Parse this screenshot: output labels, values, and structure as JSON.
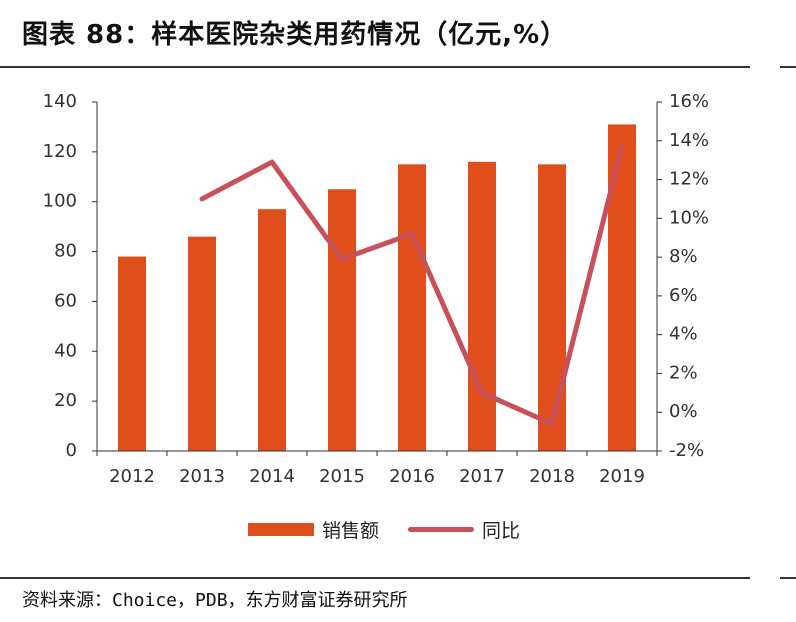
{
  "title": "图表 88：样本医院杂类用药情况（亿元,%）",
  "source": "资料来源：Choice，PDB，东方财富证券研究所",
  "colors": {
    "bar": "#E04E1C",
    "line": "#C8505A",
    "axis": "#333333"
  },
  "chart_data": {
    "type": "bar",
    "categories": [
      "2012",
      "2013",
      "2014",
      "2015",
      "2016",
      "2017",
      "2018",
      "2019"
    ],
    "series": [
      {
        "name": "销售额",
        "type": "bar",
        "axis": "left",
        "values": [
          78,
          86,
          97,
          105,
          115,
          116,
          115,
          131
        ]
      },
      {
        "name": "同比",
        "type": "line",
        "axis": "right",
        "values": [
          null,
          11.0,
          12.9,
          7.9,
          9.2,
          1.0,
          -0.6,
          13.7
        ]
      }
    ],
    "y_left": {
      "min": 0,
      "max": 140,
      "ticks": [
        "0",
        "20",
        "40",
        "60",
        "80",
        "100",
        "120",
        "140"
      ]
    },
    "y_right": {
      "min": -2,
      "max": 16,
      "ticks": [
        "-2%",
        "0%",
        "2%",
        "4%",
        "6%",
        "8%",
        "10%",
        "12%",
        "14%",
        "16%"
      ]
    },
    "legend": "bottom",
    "grid": false
  }
}
